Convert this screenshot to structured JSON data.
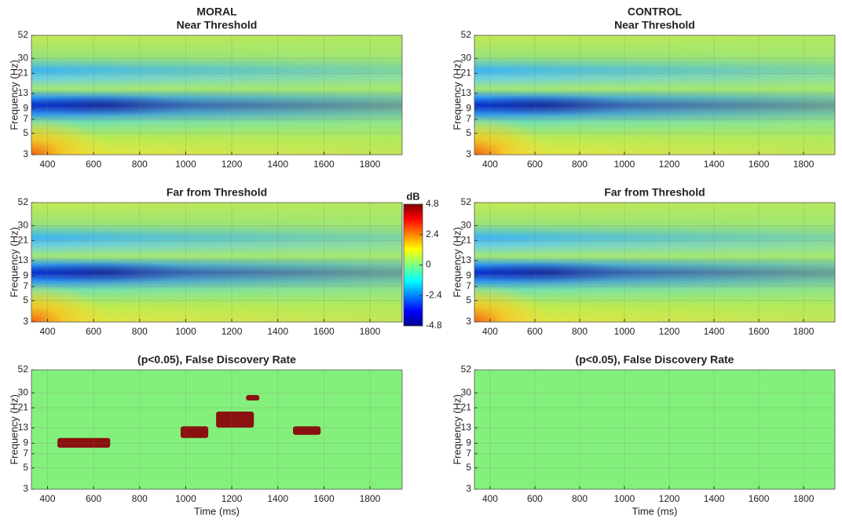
{
  "chart_data": [
    {
      "type": "heatmap",
      "title": "MORAL",
      "subtitle": "Near Threshold",
      "ylabel": "Frequency (Hz)",
      "xlim": [
        330,
        1940
      ],
      "xticks": [
        400,
        600,
        800,
        1000,
        1200,
        1400,
        1600,
        1800
      ],
      "ylim": [
        3,
        52
      ],
      "yticks": [
        3,
        5,
        7,
        9,
        13,
        21,
        30,
        52
      ],
      "log_y": true,
      "grid": true
    },
    {
      "type": "heatmap",
      "title": "CONTROL",
      "subtitle": "Near Threshold",
      "ylabel": "Frequency (Hz)",
      "xlim": [
        330,
        1940
      ],
      "xticks": [
        400,
        600,
        800,
        1000,
        1200,
        1400,
        1600,
        1800
      ],
      "ylim": [
        3,
        52
      ],
      "yticks": [
        3,
        5,
        7,
        9,
        13,
        21,
        30,
        52
      ],
      "log_y": true,
      "grid": true
    },
    {
      "type": "heatmap",
      "title": "Far from Threshold",
      "ylabel": "Frequency (Hz)",
      "xlim": [
        330,
        1940
      ],
      "xticks": [
        400,
        600,
        800,
        1000,
        1200,
        1400,
        1600,
        1800
      ],
      "ylim": [
        3,
        52
      ],
      "yticks": [
        3,
        5,
        7,
        9,
        13,
        21,
        30,
        52
      ],
      "log_y": true,
      "grid": true
    },
    {
      "type": "heatmap",
      "title": "Far from Threshold",
      "ylabel": "Frequency (Hz)",
      "xlim": [
        330,
        1940
      ],
      "xticks": [
        400,
        600,
        800,
        1000,
        1200,
        1400,
        1600,
        1800
      ],
      "ylim": [
        3,
        52
      ],
      "yticks": [
        3,
        5,
        7,
        9,
        13,
        21,
        30,
        52
      ],
      "log_y": true,
      "grid": true
    },
    {
      "type": "mask",
      "title": "(p<0.05), False Discovery Rate",
      "xlabel": "Time (ms)",
      "ylabel": "Frequency (Hz)",
      "xlim": [
        330,
        1940
      ],
      "xticks": [
        400,
        600,
        800,
        1000,
        1200,
        1400,
        1600,
        1800
      ],
      "ylim": [
        3,
        52
      ],
      "yticks": [
        3,
        5,
        7,
        9,
        13,
        21,
        30,
        52
      ],
      "log_y": true,
      "grid": true,
      "background": "#84f07c",
      "color": "#8b1010",
      "clusters": [
        {
          "x": [
            443,
            672
          ],
          "y": [
            8.1,
            10.2
          ]
        },
        {
          "x": [
            978,
            1098
          ],
          "y": [
            10.2,
            13.5
          ]
        },
        {
          "x": [
            1132,
            1296
          ],
          "y": [
            13.1,
            19.2
          ]
        },
        {
          "x": [
            1262,
            1320
          ],
          "y": [
            25,
            28.5
          ]
        },
        {
          "x": [
            1466,
            1586
          ],
          "y": [
            11,
            13.5
          ]
        }
      ]
    },
    {
      "type": "mask",
      "title": "(p<0.05), False Discovery Rate",
      "xlabel": "Time (ms)",
      "ylabel": "Frequency (Hz)",
      "xlim": [
        330,
        1940
      ],
      "xticks": [
        400,
        600,
        800,
        1000,
        1200,
        1400,
        1600,
        1800
      ],
      "ylim": [
        3,
        52
      ],
      "yticks": [
        3,
        5,
        7,
        9,
        13,
        21,
        30,
        52
      ],
      "log_y": true,
      "grid": true,
      "background": "#84f07c",
      "color": "#8b1010",
      "clusters": []
    }
  ],
  "colorbar": {
    "label": "dB",
    "lim": [
      -4.8,
      4.8
    ],
    "ticks": [
      4.8,
      2.4,
      0,
      -2.4,
      -4.8
    ]
  }
}
